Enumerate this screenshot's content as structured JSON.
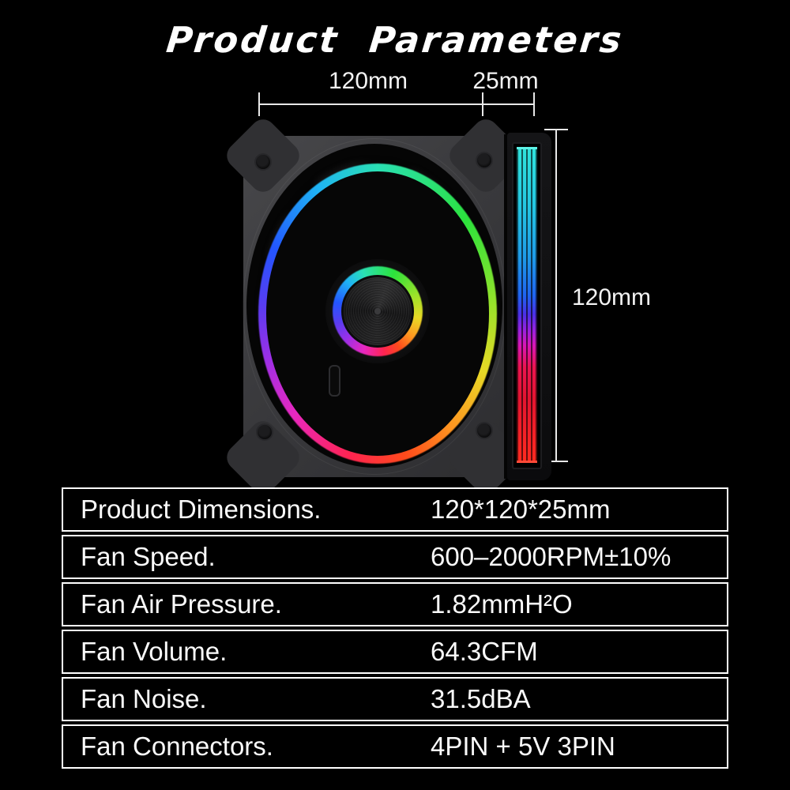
{
  "title": "Product Parameters",
  "diagram": {
    "width_label": "120mm",
    "depth_label": "25mm",
    "height_label": "120mm"
  },
  "specs": {
    "rows": [
      {
        "label": "Product Dimensions.",
        "value": "120*120*25mm"
      },
      {
        "label": "Fan Speed.",
        "value": "600–2000RPM±10%"
      },
      {
        "label": "Fan Air Pressure.",
        "value": "1.82mmH²O"
      },
      {
        "label": "Fan Volume.",
        "value": "64.3CFM"
      },
      {
        "label": "Fan Noise.",
        "value": "31.5dBA"
      },
      {
        "label": "Fan Connectors.",
        "value": "4PIN + 5V 3PIN"
      }
    ]
  },
  "colors": {
    "background": "#000000",
    "text": "#f5f5f5",
    "table_border": "#ffffff",
    "fan_frame": "#3a3a3d",
    "rgb_ring_stops": [
      "#2ae0b4 0%",
      "#2ce23c 12%",
      "#9ae22a 24%",
      "#e8da26 33%",
      "#ff9420 41%",
      "#ff4a1c 47%",
      "#ff2450 53%",
      "#e828c0 61%",
      "#9a30e8 69%",
      "#5a3cf0 76%",
      "#2356ff 84%",
      "#1fb4f4 93%",
      "#2ae0b4 100%"
    ],
    "side_glow_stops": [
      "#2fe2dc 0%",
      "#24c8e2 18%",
      "#1e9ae8 35%",
      "#1f64f0 47%",
      "#4a30e8 53%",
      "#9722e0 58%",
      "#d916b6 63%",
      "#ec1450 70%",
      "#e41430 80%",
      "#ff2a20 100%"
    ]
  }
}
